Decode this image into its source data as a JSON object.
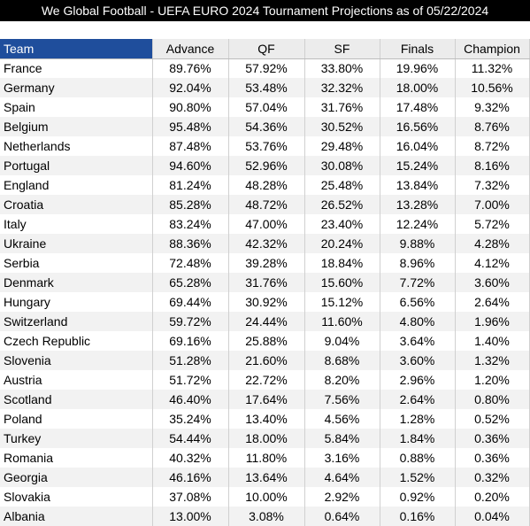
{
  "title": "We Global Football - UEFA EURO 2024 Tournament Projections as of 05/22/2024",
  "columns": [
    "Team",
    "Advance",
    "QF",
    "SF",
    "Finals",
    "Champion"
  ],
  "rows": [
    [
      "France",
      "89.76%",
      "57.92%",
      "33.80%",
      "19.96%",
      "11.32%"
    ],
    [
      "Germany",
      "92.04%",
      "53.48%",
      "32.32%",
      "18.00%",
      "10.56%"
    ],
    [
      "Spain",
      "90.80%",
      "57.04%",
      "31.76%",
      "17.48%",
      "9.32%"
    ],
    [
      "Belgium",
      "95.48%",
      "54.36%",
      "30.52%",
      "16.56%",
      "8.76%"
    ],
    [
      "Netherlands",
      "87.48%",
      "53.76%",
      "29.48%",
      "16.04%",
      "8.72%"
    ],
    [
      "Portugal",
      "94.60%",
      "52.96%",
      "30.08%",
      "15.24%",
      "8.16%"
    ],
    [
      "England",
      "81.24%",
      "48.28%",
      "25.48%",
      "13.84%",
      "7.32%"
    ],
    [
      "Croatia",
      "85.28%",
      "48.72%",
      "26.52%",
      "13.28%",
      "7.00%"
    ],
    [
      "Italy",
      "83.24%",
      "47.00%",
      "23.40%",
      "12.24%",
      "5.72%"
    ],
    [
      "Ukraine",
      "88.36%",
      "42.32%",
      "20.24%",
      "9.88%",
      "4.28%"
    ],
    [
      "Serbia",
      "72.48%",
      "39.28%",
      "18.84%",
      "8.96%",
      "4.12%"
    ],
    [
      "Denmark",
      "65.28%",
      "31.76%",
      "15.60%",
      "7.72%",
      "3.60%"
    ],
    [
      "Hungary",
      "69.44%",
      "30.92%",
      "15.12%",
      "6.56%",
      "2.64%"
    ],
    [
      "Switzerland",
      "59.72%",
      "24.44%",
      "11.60%",
      "4.80%",
      "1.96%"
    ],
    [
      "Czech Republic",
      "69.16%",
      "25.88%",
      "9.04%",
      "3.64%",
      "1.40%"
    ],
    [
      "Slovenia",
      "51.28%",
      "21.60%",
      "8.68%",
      "3.60%",
      "1.32%"
    ],
    [
      "Austria",
      "51.72%",
      "22.72%",
      "8.20%",
      "2.96%",
      "1.20%"
    ],
    [
      "Scotland",
      "46.40%",
      "17.64%",
      "7.56%",
      "2.64%",
      "0.80%"
    ],
    [
      "Poland",
      "35.24%",
      "13.40%",
      "4.56%",
      "1.28%",
      "0.52%"
    ],
    [
      "Turkey",
      "54.44%",
      "18.00%",
      "5.84%",
      "1.84%",
      "0.36%"
    ],
    [
      "Romania",
      "40.32%",
      "11.80%",
      "3.16%",
      "0.88%",
      "0.36%"
    ],
    [
      "Georgia",
      "46.16%",
      "13.64%",
      "4.64%",
      "1.52%",
      "0.32%"
    ],
    [
      "Slovakia",
      "37.08%",
      "10.00%",
      "2.92%",
      "0.92%",
      "0.20%"
    ],
    [
      "Albania",
      "13.00%",
      "3.08%",
      "0.64%",
      "0.16%",
      "0.04%"
    ]
  ],
  "colors": {
    "title_bg": "#000000",
    "title_fg": "#ffffff",
    "team_header_bg": "#1f4e9c",
    "header_bg": "#ececec",
    "stripe_bg": "#f2f2f2"
  }
}
